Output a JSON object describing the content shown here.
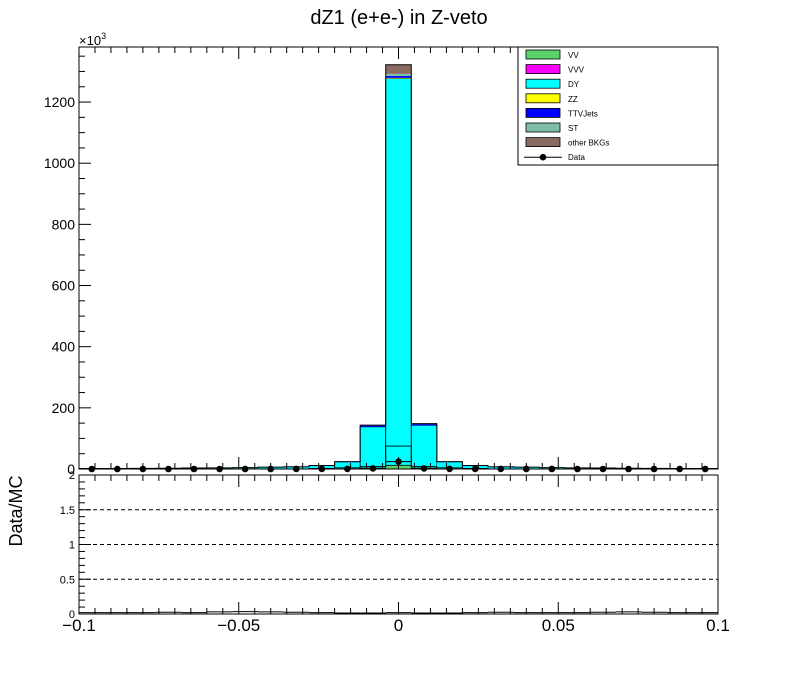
{
  "chart_data": [
    {
      "type": "stacked-histogram",
      "title": "dZ1 (e+e-) in Z-veto",
      "exponent_label": "×10",
      "exponent_power": "3",
      "xlim": [
        -0.1,
        0.1
      ],
      "ylim": [
        0,
        1380
      ],
      "y_ticks": [
        0,
        200,
        400,
        600,
        800,
        1000,
        1200
      ],
      "y_tick_labels": [
        "0",
        "200",
        "400",
        "600",
        "800",
        "1000",
        "1200"
      ],
      "bin_edges": [
        -0.1,
        -0.092,
        -0.084,
        -0.076,
        -0.068,
        -0.06,
        -0.052,
        -0.044,
        -0.036,
        -0.028,
        -0.02,
        -0.012,
        -0.004,
        0.004,
        0.012,
        0.02,
        0.028,
        0.036,
        0.044,
        0.052,
        0.06,
        0.068,
        0.076,
        0.084,
        0.092,
        0.1
      ],
      "series": [
        {
          "name": "VV",
          "color": "#5bd36b",
          "values": [
            0.3,
            0.3,
            0.3,
            0.4,
            0.4,
            0.5,
            0.6,
            0.8,
            1,
            1.5,
            2,
            3,
            12,
            3,
            2,
            1.5,
            1,
            0.8,
            0.6,
            0.5,
            0.4,
            0.4,
            0.3,
            0.3,
            0.3
          ]
        },
        {
          "name": "VVV",
          "color": "#ff00ff",
          "values": [
            0,
            0,
            0,
            0,
            0,
            0,
            0,
            0,
            0,
            0,
            0,
            0,
            0.1,
            0,
            0,
            0,
            0,
            0,
            0,
            0,
            0,
            0,
            0,
            0,
            0
          ]
        },
        {
          "name": "DY",
          "color": "#00ffff",
          "values": [
            1,
            1,
            1.2,
            1.5,
            2,
            2.5,
            3,
            4,
            5,
            8,
            20,
            135,
            1265,
            140,
            20,
            8,
            5,
            4,
            3,
            2.5,
            2,
            1.5,
            1.2,
            1,
            1
          ]
        },
        {
          "name": "ZZ",
          "color": "#ffff00",
          "values": [
            0,
            0,
            0,
            0,
            0,
            0,
            0,
            0,
            0,
            0,
            0,
            0,
            2,
            0,
            0,
            0,
            0,
            0,
            0,
            0,
            0,
            0,
            0,
            0,
            0
          ]
        },
        {
          "name": "TTVJets",
          "color": "#0000ff",
          "values": [
            0.2,
            0.2,
            0.3,
            0.3,
            0.4,
            0.5,
            0.6,
            0.8,
            1,
            1.2,
            1.5,
            4,
            6,
            4,
            1.5,
            1.2,
            1,
            0.8,
            0.6,
            0.5,
            0.4,
            0.3,
            0.3,
            0.2,
            0.2
          ]
        },
        {
          "name": "ST",
          "color": "#7dbea4",
          "values": [
            0.1,
            0.1,
            0.1,
            0.1,
            0.2,
            0.2,
            0.2,
            0.3,
            0.3,
            0.4,
            0.5,
            1,
            7,
            1,
            0.5,
            0.4,
            0.3,
            0.3,
            0.2,
            0.2,
            0.2,
            0.1,
            0.1,
            0.1,
            0.1
          ]
        },
        {
          "name": "other BKGs",
          "color": "#8b6b61",
          "values": [
            0.1,
            0.1,
            0.1,
            0.1,
            0.1,
            0.1,
            0.1,
            0.2,
            0.2,
            0.2,
            0.3,
            0.5,
            30,
            0.5,
            0.3,
            0.2,
            0.2,
            0.2,
            0.1,
            0.1,
            0.1,
            0.1,
            0.1,
            0.1,
            0.1
          ]
        }
      ],
      "overlay": {
        "values": [
          0,
          0,
          0,
          0,
          0,
          0,
          0,
          0,
          0,
          2,
          4,
          8,
          75,
          8,
          4,
          2,
          0,
          0,
          0,
          0,
          0,
          0,
          0,
          0,
          0
        ]
      },
      "data": {
        "name": "Data",
        "color": "#000000",
        "values": [
          0.02,
          0.02,
          0.02,
          0.03,
          0.03,
          0.04,
          0.05,
          0.06,
          0.08,
          0.1,
          0.3,
          2,
          24,
          2,
          0.3,
          0.1,
          0.08,
          0.06,
          0.05,
          0.04,
          0.03,
          0.03,
          0.02,
          0.02,
          0.02
        ]
      },
      "legend": {
        "placement": "top-right",
        "entries": [
          "VV",
          "VVV",
          "DY",
          "ZZ",
          "TTVJets",
          "ST",
          "other BKGs",
          "Data"
        ]
      }
    },
    {
      "type": "ratio",
      "ylabel": "Data/MC",
      "xlim": [
        -0.1,
        0.1
      ],
      "ylim": [
        0,
        2
      ],
      "y_ticks": [
        0,
        0.5,
        1,
        1.5,
        2
      ],
      "y_tick_labels": [
        "0",
        "0.5",
        "1",
        "1.5",
        "2"
      ],
      "dashed_lines": [
        0.5,
        1,
        1.5
      ],
      "x_ticks": [
        -0.1,
        -0.05,
        0,
        0.05,
        0.1
      ],
      "x_tick_labels": [
        "−0.1",
        "−0.05",
        "0",
        "0.05",
        "0.1"
      ],
      "values": [
        0.02,
        0.02,
        0.02,
        0.025,
        0.02,
        0.03,
        0.035,
        0.03,
        0.025,
        0.02,
        0.015,
        0.015,
        0.019,
        0.015,
        0.015,
        0.02,
        0.025,
        0.02,
        0.02,
        0.02,
        0.025,
        0.03,
        0.025,
        0.02,
        0.02
      ]
    }
  ]
}
